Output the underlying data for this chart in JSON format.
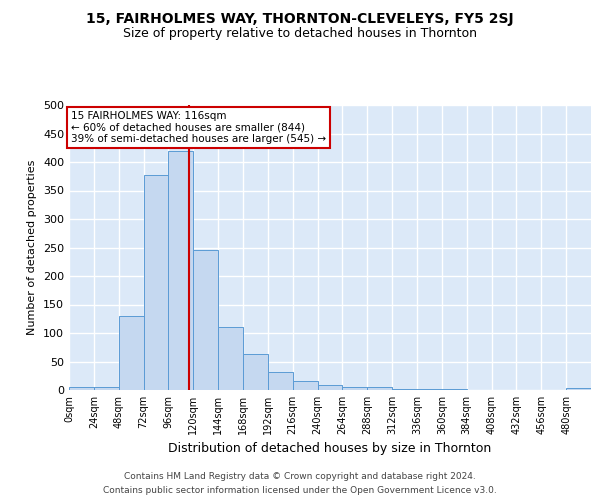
{
  "title1": "15, FAIRHOLMES WAY, THORNTON-CLEVELEYS, FY5 2SJ",
  "title2": "Size of property relative to detached houses in Thornton",
  "xlabel": "Distribution of detached houses by size in Thornton",
  "ylabel": "Number of detached properties",
  "footnote1": "Contains HM Land Registry data © Crown copyright and database right 2024.",
  "footnote2": "Contains public sector information licensed under the Open Government Licence v3.0.",
  "bin_edges": [
    0,
    24,
    48,
    72,
    96,
    120,
    144,
    168,
    192,
    216,
    240,
    264,
    288,
    312,
    336,
    360,
    384,
    408,
    432,
    456,
    480,
    504
  ],
  "bar_heights": [
    5,
    5,
    130,
    377,
    419,
    245,
    110,
    63,
    32,
    16,
    8,
    6,
    5,
    2,
    1,
    1,
    0,
    0,
    0,
    0,
    3
  ],
  "bar_color": "#c5d8f0",
  "bar_edge_color": "#5b9bd5",
  "property_size": 116,
  "redline_color": "#cc0000",
  "annotation_text1": "15 FAIRHOLMES WAY: 116sqm",
  "annotation_text2": "← 60% of detached houses are smaller (844)",
  "annotation_text3": "39% of semi-detached houses are larger (545) →",
  "annotation_box_color": "#ffffff",
  "annotation_box_edge": "#cc0000",
  "bg_color": "#dce9f8",
  "grid_color": "#ffffff",
  "ylim": [
    0,
    500
  ],
  "yticks": [
    0,
    50,
    100,
    150,
    200,
    250,
    300,
    350,
    400,
    450,
    500
  ]
}
